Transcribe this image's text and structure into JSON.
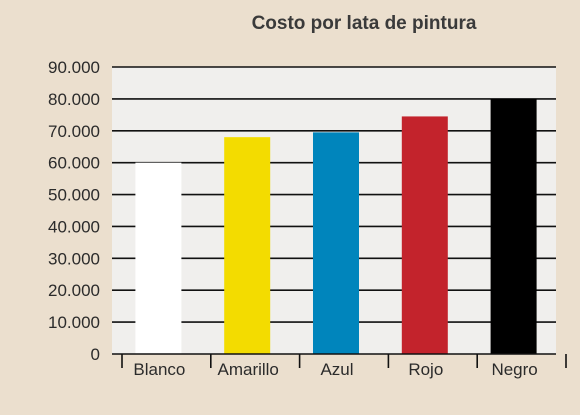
{
  "chart_data": {
    "type": "bar",
    "title": "Costo por lata de pintura",
    "xlabel": "",
    "ylabel": "",
    "categories": [
      "Blanco",
      "Amarillo",
      "Azul",
      "Rojo",
      "Negro"
    ],
    "values": [
      60000,
      68000,
      69500,
      74500,
      80000
    ],
    "colors": [
      "#ffffff",
      "#f3dc00",
      "#0085bc",
      "#c3232c",
      "#000000"
    ],
    "ylim": [
      0,
      90000
    ],
    "yticks": [
      0,
      10000,
      20000,
      30000,
      40000,
      50000,
      60000,
      70000,
      80000,
      90000
    ],
    "ytick_labels": [
      "0",
      "10.000",
      "20.000",
      "30.000",
      "40.000",
      "50.000",
      "60.000",
      "70.000",
      "80.000",
      "90.000"
    ],
    "grid": true,
    "plot_background": "#f0efed",
    "page_background": "#ebdfce"
  }
}
